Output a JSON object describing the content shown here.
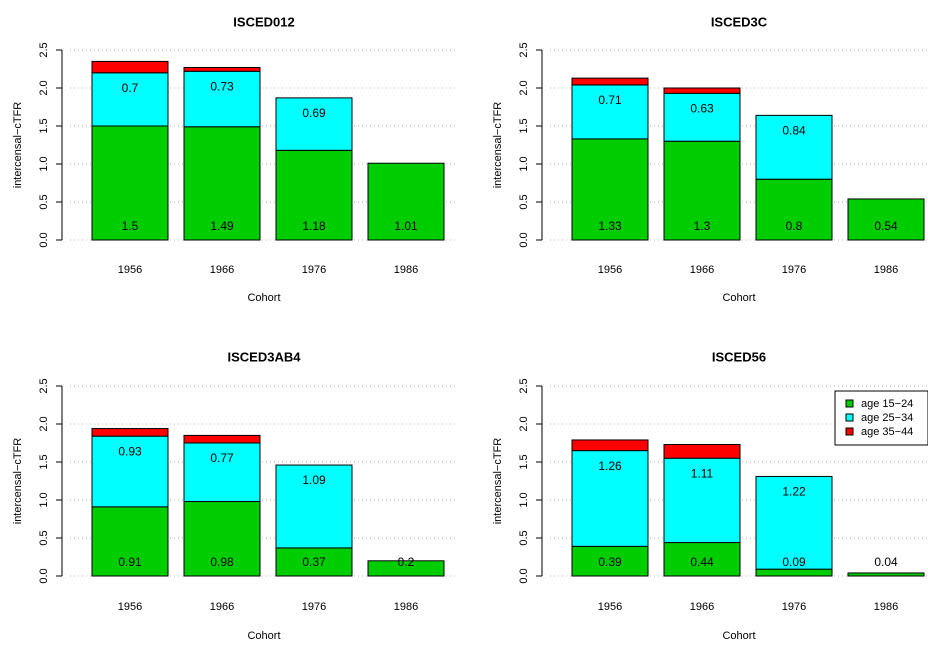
{
  "chart_data": [
    {
      "type": "bar",
      "stacked": true,
      "title": "ISCED012",
      "xlabel": "Cohort",
      "ylabel": "intercensal−cTFR",
      "ylim": [
        0,
        2.5
      ],
      "yticks": [
        "0.0",
        "0.5",
        "1.0",
        "1.5",
        "2.0",
        "2.5"
      ],
      "grid": "horizontal dotted",
      "categories": [
        "1956",
        "1966",
        "1976",
        "1986"
      ],
      "series": [
        {
          "name": "age 15−24",
          "color": "#00cd00",
          "values": [
            1.5,
            1.49,
            1.18,
            1.01
          ],
          "labels": [
            "1.5",
            "1.49",
            "1.18",
            "1.01"
          ]
        },
        {
          "name": "age 25−34",
          "color": "#00ffff",
          "values": [
            0.7,
            0.73,
            0.69,
            0
          ],
          "labels": [
            "0.7",
            "0.73",
            "0.69",
            ""
          ]
        },
        {
          "name": "age 35−44",
          "color": "#ff0000",
          "values": [
            0.15,
            0.05,
            0,
            0
          ],
          "labels": [
            "",
            "",
            "",
            ""
          ]
        }
      ]
    },
    {
      "type": "bar",
      "stacked": true,
      "title": "ISCED3C",
      "xlabel": "Cohort",
      "ylabel": "intercensal−cTFR",
      "ylim": [
        0,
        2.5
      ],
      "yticks": [
        "0.0",
        "0.5",
        "1.0",
        "1.5",
        "2.0",
        "2.5"
      ],
      "grid": "horizontal dotted",
      "categories": [
        "1956",
        "1966",
        "1976",
        "1986"
      ],
      "series": [
        {
          "name": "age 15−24",
          "color": "#00cd00",
          "values": [
            1.33,
            1.3,
            0.8,
            0.54
          ],
          "labels": [
            "1.33",
            "1.3",
            "0.8",
            "0.54"
          ]
        },
        {
          "name": "age 25−34",
          "color": "#00ffff",
          "values": [
            0.71,
            0.63,
            0.84,
            0
          ],
          "labels": [
            "0.71",
            "0.63",
            "0.84",
            ""
          ]
        },
        {
          "name": "age 35−44",
          "color": "#ff0000",
          "values": [
            0.09,
            0.07,
            0,
            0
          ],
          "labels": [
            "",
            "",
            "",
            ""
          ]
        }
      ]
    },
    {
      "type": "bar",
      "stacked": true,
      "title": "ISCED3AB4",
      "xlabel": "Cohort",
      "ylabel": "intercensal−cTFR",
      "ylim": [
        0,
        2.5
      ],
      "yticks": [
        "0.0",
        "0.5",
        "1.0",
        "1.5",
        "2.0",
        "2.5"
      ],
      "grid": "horizontal dotted",
      "categories": [
        "1956",
        "1966",
        "1976",
        "1986"
      ],
      "series": [
        {
          "name": "age 15−24",
          "color": "#00cd00",
          "values": [
            0.91,
            0.98,
            0.37,
            0.2
          ],
          "labels": [
            "0.91",
            "0.98",
            "0.37",
            "0.2"
          ]
        },
        {
          "name": "age 25−34",
          "color": "#00ffff",
          "values": [
            0.93,
            0.77,
            1.09,
            0
          ],
          "labels": [
            "0.93",
            "0.77",
            "1.09",
            ""
          ]
        },
        {
          "name": "age 35−44",
          "color": "#ff0000",
          "values": [
            0.1,
            0.1,
            0,
            0
          ],
          "labels": [
            "",
            "",
            "",
            ""
          ]
        }
      ]
    },
    {
      "type": "bar",
      "stacked": true,
      "title": "ISCED56",
      "xlabel": "Cohort",
      "ylabel": "intercensal−cTFR",
      "ylim": [
        0,
        2.5
      ],
      "yticks": [
        "0.0",
        "0.5",
        "1.0",
        "1.5",
        "2.0",
        "2.5"
      ],
      "grid": "horizontal dotted",
      "categories": [
        "1956",
        "1966",
        "1976",
        "1986"
      ],
      "legend": "top-right",
      "series": [
        {
          "name": "age 15−24",
          "color": "#00cd00",
          "values": [
            0.39,
            0.44,
            0.09,
            0.04
          ],
          "labels": [
            "0.39",
            "0.44",
            "0.09",
            "0.04"
          ]
        },
        {
          "name": "age 25−34",
          "color": "#00ffff",
          "values": [
            1.26,
            1.11,
            1.22,
            0
          ],
          "labels": [
            "1.26",
            "1.11",
            "1.22",
            ""
          ]
        },
        {
          "name": "age 35−44",
          "color": "#ff0000",
          "values": [
            0.14,
            0.18,
            0,
            0
          ],
          "labels": [
            "",
            "",
            "",
            ""
          ]
        }
      ]
    }
  ]
}
